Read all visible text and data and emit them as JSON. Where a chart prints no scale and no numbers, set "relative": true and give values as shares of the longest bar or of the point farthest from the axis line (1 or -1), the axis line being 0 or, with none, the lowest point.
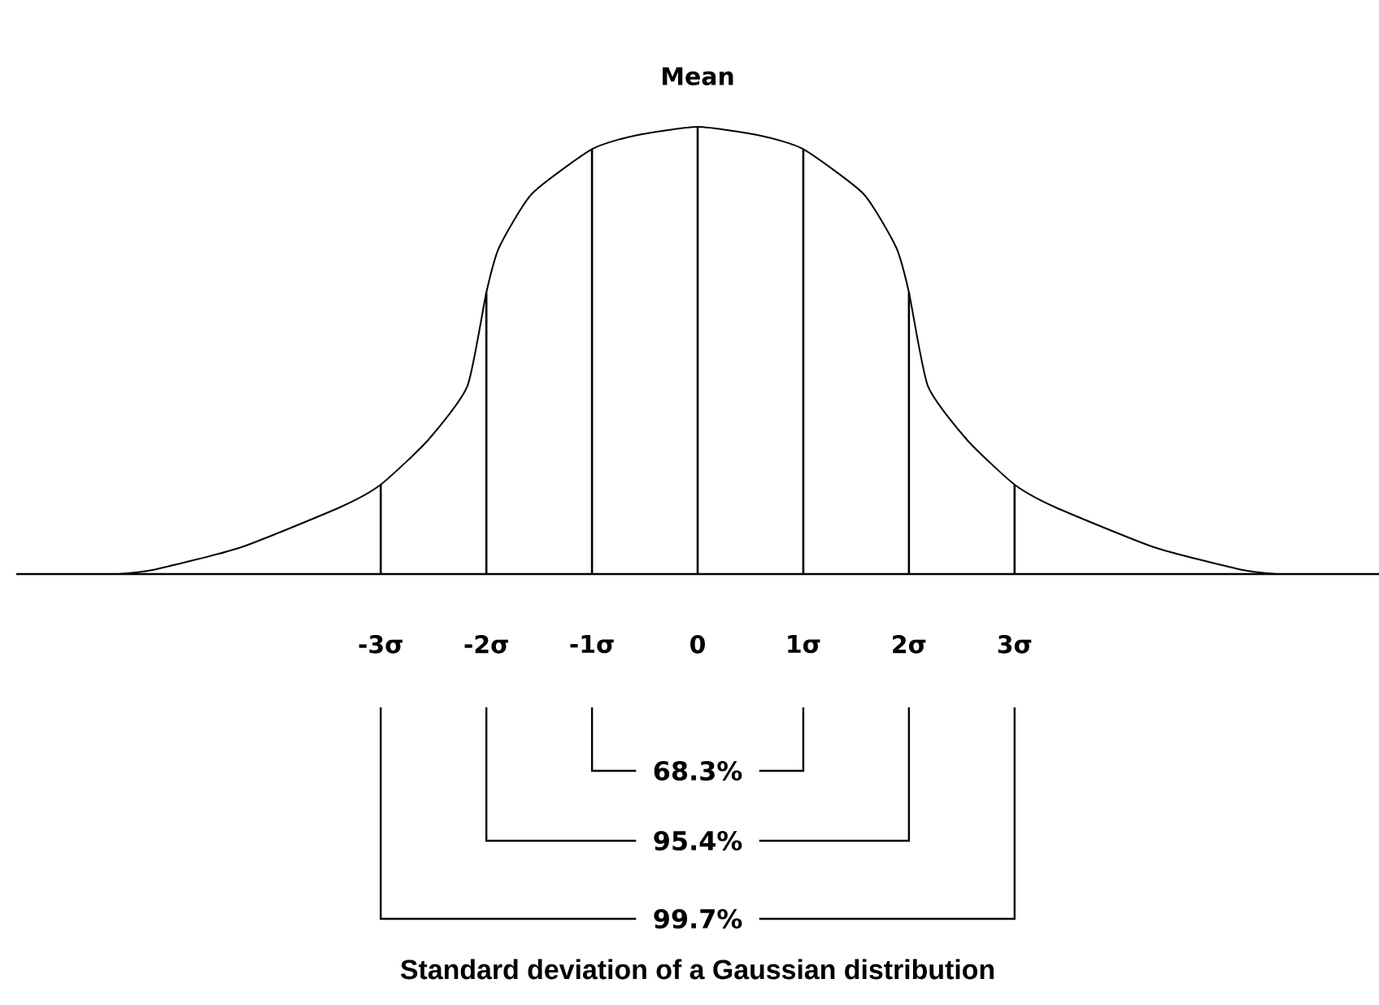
{
  "chart_data": {
    "type": "line",
    "relative": true,
    "title": "Standard deviation of a Gaussian distribution",
    "x": [
      -5.48,
      -5.14,
      -4.32,
      -3.38,
      -3,
      -2.55,
      -2.18,
      -2,
      -1.88,
      -1.57,
      -1,
      -0.6,
      0,
      0.6,
      1,
      1.57,
      1.88,
      2,
      2.18,
      2.55,
      3,
      3.38,
      4.32,
      5.14,
      5.48
    ],
    "values": [
      0,
      0.01,
      0.06,
      0.15,
      0.2,
      0.3,
      0.42,
      0.63,
      0.73,
      0.85,
      0.95,
      0.98,
      1,
      0.98,
      0.95,
      0.85,
      0.73,
      0.63,
      0.42,
      0.3,
      0.2,
      0.15,
      0.06,
      0.01,
      0
    ],
    "color": "#000000",
    "xlim": [
      -6.45,
      6.45
    ],
    "xticks": [
      {
        "value": -3,
        "label": "-3σ"
      },
      {
        "value": -2,
        "label": "-2σ"
      },
      {
        "value": -1,
        "label": "-1σ"
      },
      0,
      {
        "value": 1,
        "label": "1σ"
      },
      {
        "value": 2,
        "label": "2σ"
      },
      {
        "value": 3,
        "label": "3σ"
      }
    ],
    "ref_lines": [
      {
        "axis": "x",
        "value": -3
      },
      {
        "axis": "x",
        "value": -2
      },
      {
        "axis": "x",
        "value": -1
      },
      {
        "axis": "x",
        "value": 0
      },
      {
        "axis": "x",
        "value": 1
      },
      {
        "axis": "x",
        "value": 2
      },
      {
        "axis": "x",
        "value": 3
      }
    ],
    "annotations": [
      {
        "text": "Mean",
        "x": 0,
        "y": 1
      },
      "68.3%",
      "95.4%",
      "99.7%"
    ]
  }
}
